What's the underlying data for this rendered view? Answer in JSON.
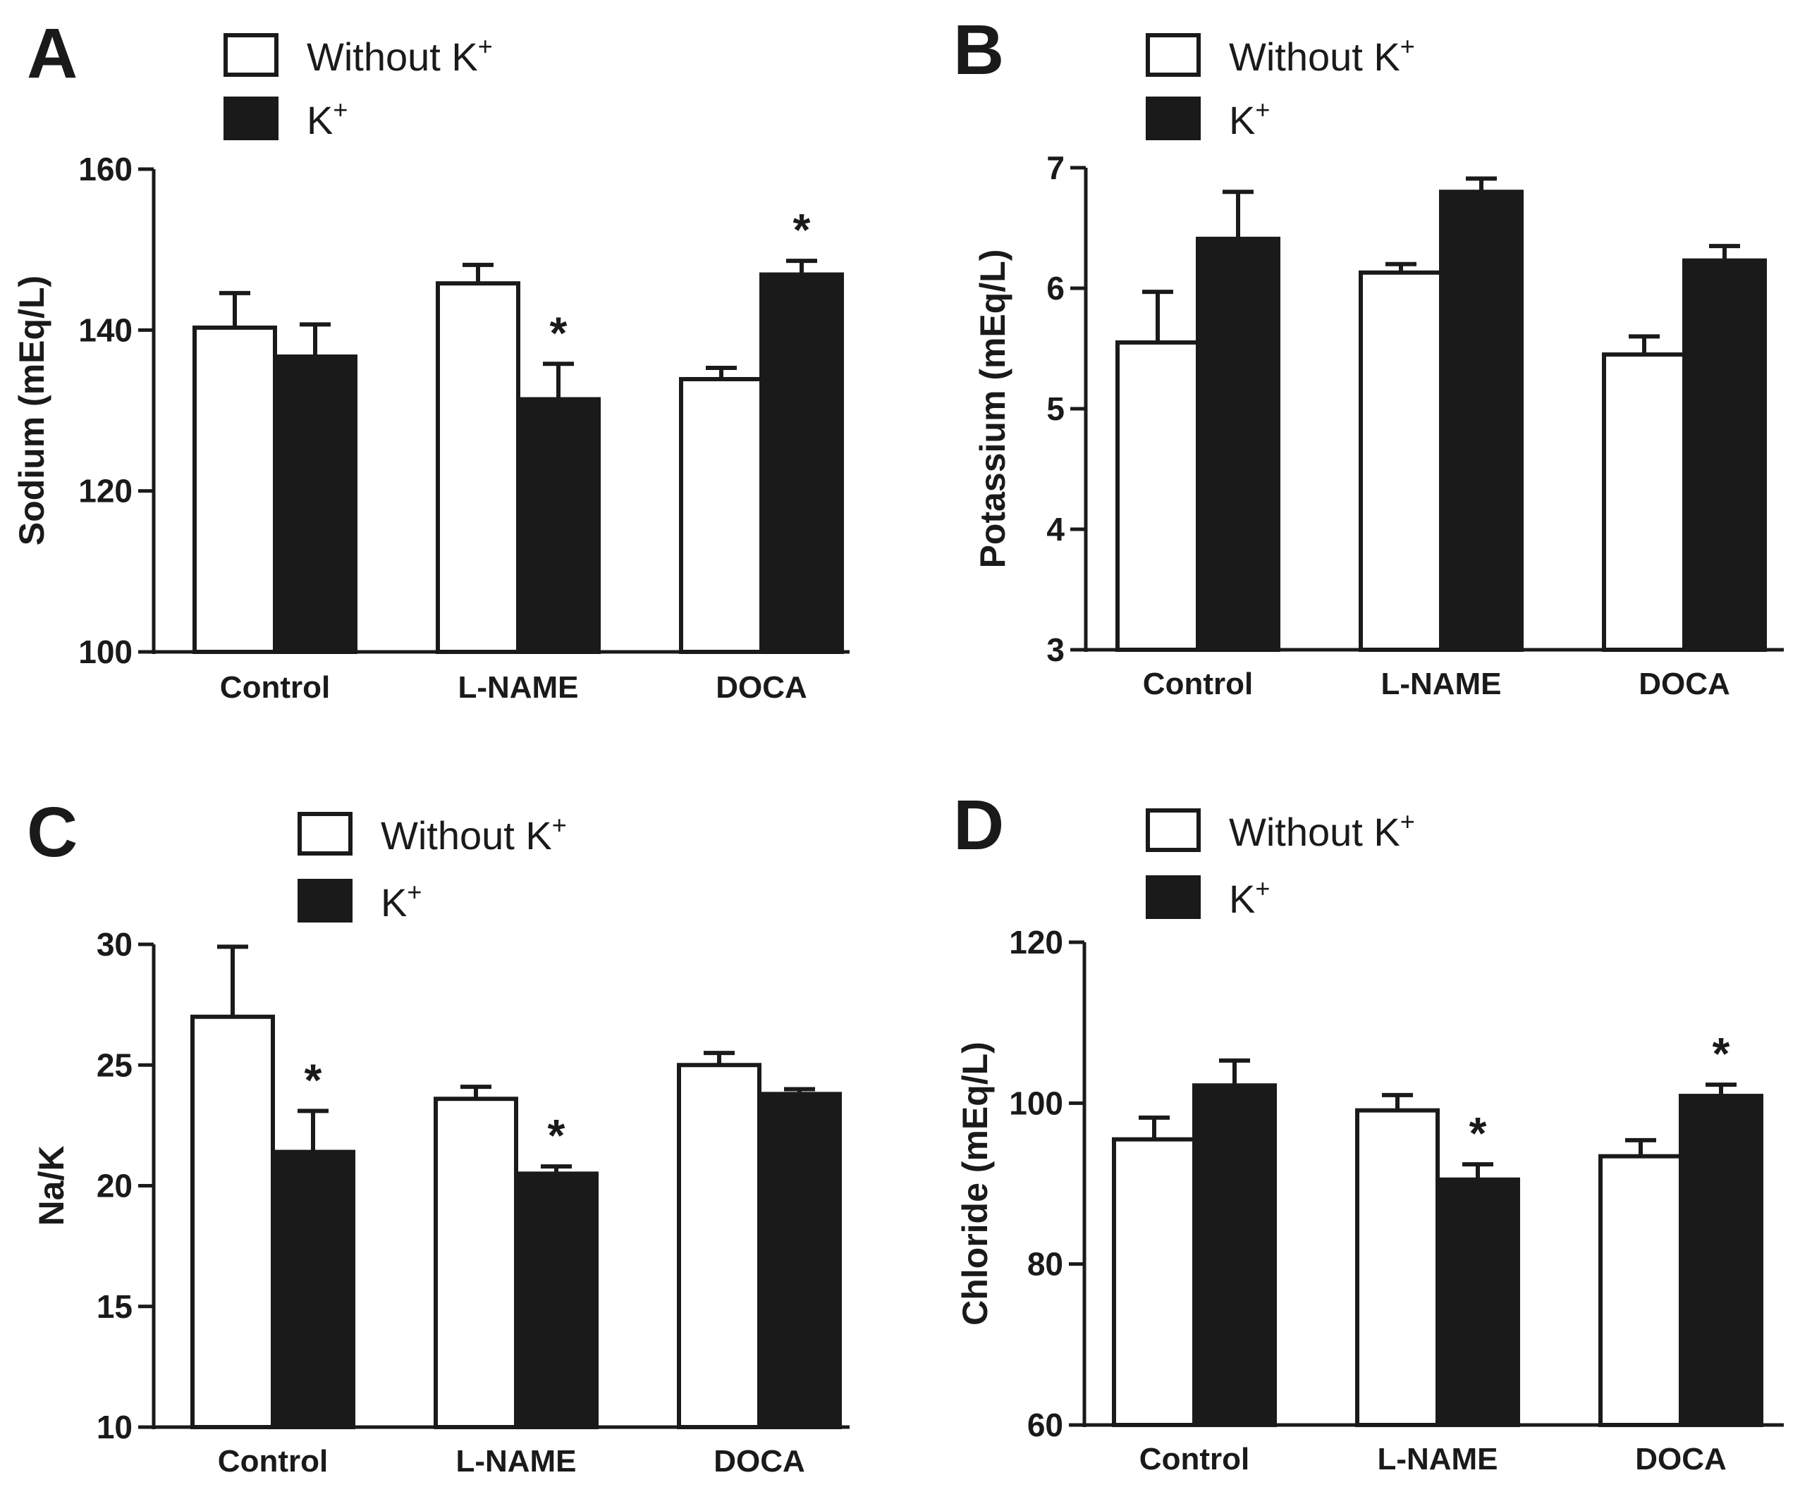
{
  "legend": {
    "open_label": "Without K",
    "filled_label": "K",
    "superscript": "+"
  },
  "chart_data": [
    {
      "panel": "A",
      "type": "bar",
      "ylabel": "Sodium (mEq/L)",
      "ylim": [
        100,
        160
      ],
      "yticks": [
        100,
        120,
        140,
        160
      ],
      "categories": [
        "Control",
        "L-NAME",
        "DOCA"
      ],
      "series": [
        {
          "name": "Without K+",
          "style": "open",
          "values": [
            140.3,
            145.8,
            133.9
          ],
          "errors": [
            4.3,
            2.3,
            1.4
          ]
        },
        {
          "name": "K+",
          "style": "filled",
          "values": [
            136.7,
            131.4,
            146.9
          ],
          "errors": [
            4.0,
            4.4,
            1.7
          ]
        }
      ],
      "significance": [
        {
          "series": 1,
          "category": 1,
          "mark": "*"
        },
        {
          "series": 1,
          "category": 2,
          "mark": "*"
        }
      ]
    },
    {
      "panel": "B",
      "type": "bar",
      "ylabel": "Potassium (mEq/L)",
      "ylim": [
        3,
        7
      ],
      "yticks": [
        3,
        4,
        5,
        6,
        7
      ],
      "categories": [
        "Control",
        "L-NAME",
        "DOCA"
      ],
      "series": [
        {
          "name": "Without K+",
          "style": "open",
          "values": [
            5.55,
            6.13,
            5.45
          ],
          "errors": [
            0.42,
            0.07,
            0.15
          ]
        },
        {
          "name": "K+",
          "style": "filled",
          "values": [
            6.41,
            6.8,
            6.23
          ],
          "errors": [
            0.39,
            0.11,
            0.12
          ]
        }
      ],
      "significance": []
    },
    {
      "panel": "C",
      "type": "bar",
      "ylabel": "Na/K",
      "ylim": [
        10,
        30
      ],
      "yticks": [
        10,
        15,
        20,
        25,
        30
      ],
      "categories": [
        "Control",
        "L-NAME",
        "DOCA"
      ],
      "series": [
        {
          "name": "Without K+",
          "style": "open",
          "values": [
            27.0,
            23.6,
            25.0
          ],
          "errors": [
            2.9,
            0.5,
            0.5
          ]
        },
        {
          "name": "K+",
          "style": "filled",
          "values": [
            21.4,
            20.5,
            23.8
          ],
          "errors": [
            1.7,
            0.3,
            0.2
          ]
        }
      ],
      "significance": [
        {
          "series": 1,
          "category": 0,
          "mark": "*"
        },
        {
          "series": 1,
          "category": 1,
          "mark": "*"
        }
      ]
    },
    {
      "panel": "D",
      "type": "bar",
      "ylabel": "Chloride (mEq/L)",
      "ylim": [
        60,
        120
      ],
      "yticks": [
        60,
        80,
        100,
        120
      ],
      "categories": [
        "Control",
        "L-NAME",
        "DOCA"
      ],
      "series": [
        {
          "name": "Without K+",
          "style": "open",
          "values": [
            95.5,
            99.1,
            93.4
          ],
          "errors": [
            2.7,
            1.9,
            2.0
          ]
        },
        {
          "name": "K+",
          "style": "filled",
          "values": [
            102.2,
            90.5,
            100.9
          ],
          "errors": [
            3.1,
            1.9,
            1.4
          ]
        }
      ],
      "significance": [
        {
          "series": 1,
          "category": 1,
          "mark": "*"
        },
        {
          "series": 1,
          "category": 2,
          "mark": "*"
        }
      ]
    }
  ]
}
